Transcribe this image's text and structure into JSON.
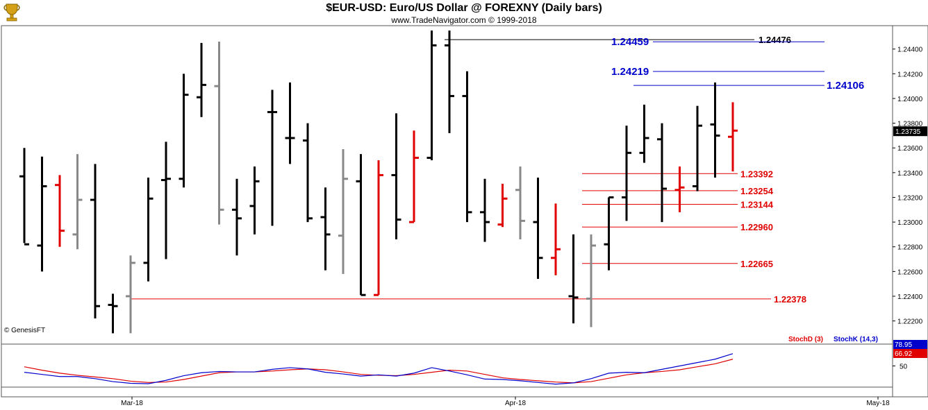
{
  "header": {
    "title": "$EUR-USD:  Euro/US Dollar @ FOREXNY  (Daily bars)",
    "subtitle": "www.TradeNavigator.com © 1999-2018"
  },
  "watermark": "© GenesisFT",
  "colors": {
    "up_bar": "#000000",
    "down_bar": "#888888",
    "highlight_bar": "#e00000",
    "resistance": "#0000cc",
    "support": "#e00000",
    "stoch_d": "#e00000",
    "stoch_k": "#0000cc"
  },
  "chart_data": [
    {
      "type": "ohlc",
      "title": "$EUR-USD:  Euro/US Dollar @ FOREXNY  (Daily bars)",
      "ylim": [
        1.2208,
        1.2455
      ],
      "y_ticks": [
        "1.22200",
        "1.22400",
        "1.22600",
        "1.22800",
        "1.23000",
        "1.23200",
        "1.23400",
        "1.23600",
        "1.23800",
        "1.24000",
        "1.24200",
        "1.24400"
      ],
      "x_ticks": [
        "Mar-18",
        "Apr-18",
        "May-18"
      ],
      "last_price": "1.23735",
      "bars": [
        {
          "o": 1.2337,
          "h": 1.236,
          "l": 1.2283,
          "c": 1.2282,
          "color": "black"
        },
        {
          "o": 1.2281,
          "h": 1.2353,
          "l": 1.226,
          "c": 1.2329,
          "color": "black"
        },
        {
          "o": 1.233,
          "h": 1.2338,
          "l": 1.228,
          "c": 1.2293,
          "color": "red"
        },
        {
          "o": 1.229,
          "h": 1.2355,
          "l": 1.2278,
          "c": 1.2318,
          "color": "gray"
        },
        {
          "o": 1.2318,
          "h": 1.2347,
          "l": 1.2222,
          "c": 1.2232,
          "color": "black"
        },
        {
          "o": 1.2233,
          "h": 1.2242,
          "l": 1.221,
          "c": 1.2232,
          "color": "black"
        },
        {
          "o": 1.224,
          "h": 1.2273,
          "l": 1.221,
          "c": 1.2267,
          "color": "gray"
        },
        {
          "o": 1.2267,
          "h": 1.2336,
          "l": 1.2252,
          "c": 1.2319,
          "color": "black"
        },
        {
          "o": 1.2334,
          "h": 1.2365,
          "l": 1.227,
          "c": 1.2335,
          "color": "black"
        },
        {
          "o": 1.2335,
          "h": 1.242,
          "l": 1.2328,
          "c": 1.2403,
          "color": "black"
        },
        {
          "o": 1.2401,
          "h": 1.2445,
          "l": 1.2385,
          "c": 1.2411,
          "color": "black"
        },
        {
          "o": 1.241,
          "h": 1.2446,
          "l": 1.2298,
          "c": 1.231,
          "color": "gray"
        },
        {
          "o": 1.231,
          "h": 1.2335,
          "l": 1.2273,
          "c": 1.2303,
          "color": "black"
        },
        {
          "o": 1.2313,
          "h": 1.2345,
          "l": 1.229,
          "c": 1.2333,
          "color": "black"
        },
        {
          "o": 1.2389,
          "h": 1.2407,
          "l": 1.2297,
          "c": 1.2389,
          "color": "black"
        },
        {
          "o": 1.2368,
          "h": 1.2413,
          "l": 1.2347,
          "c": 1.2368,
          "color": "black"
        },
        {
          "o": 1.2366,
          "h": 1.238,
          "l": 1.23,
          "c": 1.2303,
          "color": "black"
        },
        {
          "o": 1.2304,
          "h": 1.2328,
          "l": 1.2261,
          "c": 1.229,
          "color": "black"
        },
        {
          "o": 1.2289,
          "h": 1.2359,
          "l": 1.2258,
          "c": 1.2335,
          "color": "gray"
        },
        {
          "o": 1.2333,
          "h": 1.2355,
          "l": 1.2241,
          "c": 1.2241,
          "color": "black"
        },
        {
          "o": 1.2241,
          "h": 1.235,
          "l": 1.2241,
          "c": 1.2338,
          "color": "red"
        },
        {
          "o": 1.2338,
          "h": 1.2388,
          "l": 1.2286,
          "c": 1.2302,
          "color": "black"
        },
        {
          "o": 1.23,
          "h": 1.2374,
          "l": 1.23,
          "c": 1.2352,
          "color": "red"
        },
        {
          "o": 1.2352,
          "h": 1.2455,
          "l": 1.235,
          "c": 1.2443,
          "color": "black"
        },
        {
          "o": 1.2443,
          "h": 1.2455,
          "l": 1.2372,
          "c": 1.2402,
          "color": "black"
        },
        {
          "o": 1.2402,
          "h": 1.2422,
          "l": 1.23,
          "c": 1.2308,
          "color": "black"
        },
        {
          "o": 1.2308,
          "h": 1.2335,
          "l": 1.2284,
          "c": 1.23,
          "color": "black"
        },
        {
          "o": 1.2298,
          "h": 1.2331,
          "l": 1.2296,
          "c": 1.2319,
          "color": "red"
        },
        {
          "o": 1.2326,
          "h": 1.2345,
          "l": 1.2286,
          "c": 1.2301,
          "color": "gray"
        },
        {
          "o": 1.23,
          "h": 1.2336,
          "l": 1.2254,
          "c": 1.2271,
          "color": "black"
        },
        {
          "o": 1.2271,
          "h": 1.2315,
          "l": 1.2257,
          "c": 1.2278,
          "color": "red"
        },
        {
          "o": 1.224,
          "h": 1.229,
          "l": 1.2218,
          "c": 1.2239,
          "color": "black"
        },
        {
          "o": 1.2238,
          "h": 1.229,
          "l": 1.2215,
          "c": 1.2281,
          "color": "gray"
        },
        {
          "o": 1.2282,
          "h": 1.232,
          "l": 1.2261,
          "c": 1.232,
          "color": "black"
        },
        {
          "o": 1.232,
          "h": 1.2378,
          "l": 1.2301,
          "c": 1.2356,
          "color": "black"
        },
        {
          "o": 1.2356,
          "h": 1.2395,
          "l": 1.2348,
          "c": 1.2368,
          "color": "black"
        },
        {
          "o": 1.2367,
          "h": 1.238,
          "l": 1.23,
          "c": 1.2327,
          "color": "black"
        },
        {
          "o": 1.2326,
          "h": 1.2345,
          "l": 1.2308,
          "c": 1.2328,
          "color": "red"
        },
        {
          "o": 1.2329,
          "h": 1.2394,
          "l": 1.2325,
          "c": 1.2378,
          "color": "black"
        },
        {
          "o": 1.2379,
          "h": 1.2413,
          "l": 1.2336,
          "c": 1.237,
          "color": "black"
        },
        {
          "o": 1.2369,
          "h": 1.2397,
          "l": 1.2341,
          "c": 1.2374,
          "color": "red"
        }
      ],
      "levels": [
        {
          "price": 1.24476,
          "label": "1.24476",
          "side": "resistance",
          "label_color": "#000000"
        },
        {
          "price": 1.24459,
          "label": "1.24459",
          "side": "resistance",
          "label_color": "#0000cc"
        },
        {
          "price": 1.24219,
          "label": "1.24219",
          "side": "resistance",
          "label_color": "#0000cc"
        },
        {
          "price": 1.24106,
          "label": "1.24106",
          "side": "resistance",
          "label_color": "#0000cc"
        },
        {
          "price": 1.23392,
          "label": "1.23392",
          "side": "support",
          "label_color": "#e00000"
        },
        {
          "price": 1.23254,
          "label": "1.23254",
          "side": "support",
          "label_color": "#e00000"
        },
        {
          "price": 1.23144,
          "label": "1.23144",
          "side": "support",
          "label_color": "#e00000"
        },
        {
          "price": 1.2296,
          "label": "1.22960",
          "side": "support",
          "label_color": "#e00000"
        },
        {
          "price": 1.22665,
          "label": "1.22665",
          "side": "support",
          "label_color": "#e00000"
        },
        {
          "price": 1.22378,
          "label": "1.22378",
          "side": "support",
          "label_color": "#e00000"
        }
      ]
    },
    {
      "type": "line",
      "title": "",
      "legend": [
        "StochD (3)",
        "StochK (14,3)"
      ],
      "ylim": [
        0,
        100
      ],
      "y_ticks": [
        "50"
      ],
      "last_values": {
        "k": "78.95",
        "d": "66.92"
      },
      "series": [
        {
          "name": "StochK (14,3)",
          "values": [
            35,
            30,
            25,
            25,
            20,
            13,
            9,
            8,
            16,
            27,
            34,
            37,
            36,
            36,
            42,
            46,
            43,
            35,
            31,
            26,
            29,
            26,
            33,
            46,
            38,
            29,
            19,
            18,
            15,
            11,
            7,
            10,
            20,
            33,
            35,
            34,
            42,
            50,
            58,
            66,
            79
          ]
        },
        {
          "name": "StochD (3)",
          "values": [
            48,
            40,
            33,
            28,
            24,
            20,
            14,
            11,
            12,
            18,
            26,
            34,
            36,
            36,
            38,
            41,
            43,
            41,
            36,
            30,
            28,
            27,
            30,
            35,
            40,
            38,
            30,
            22,
            18,
            15,
            12,
            10,
            13,
            21,
            29,
            34,
            37,
            41,
            48,
            55,
            66
          ]
        }
      ]
    }
  ]
}
